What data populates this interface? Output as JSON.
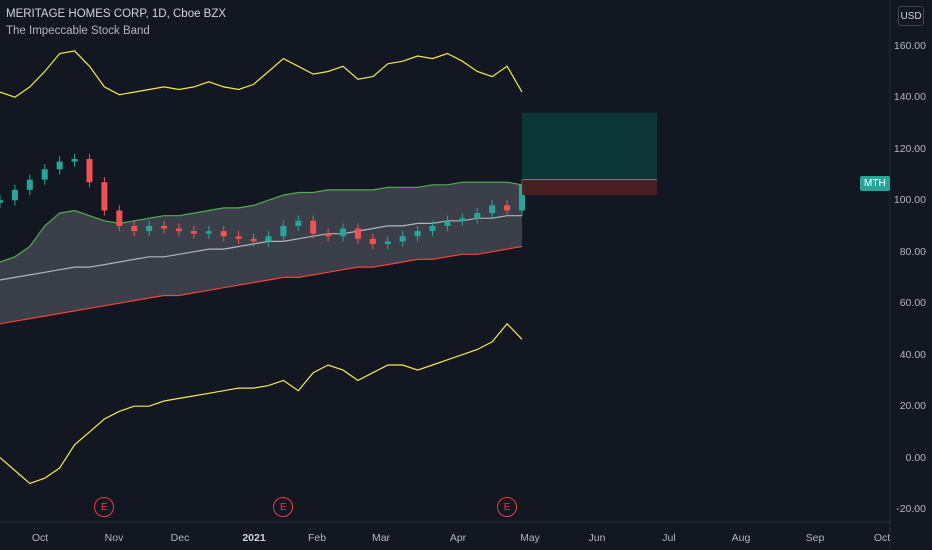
{
  "header": {
    "title": "MERITAGE HOMES CORP, 1D, Cboe BZX",
    "indicator": "The Impeccable Stock Band",
    "currency": "USD"
  },
  "ticker_badge": "MTH",
  "earnings_marker": "E",
  "colors": {
    "background": "#131722",
    "band_fill": "#4a4d57",
    "upper_band": "#4caf50",
    "lower_band": "#f44336",
    "mid_line": "#b2b5be",
    "outer_bands": "#f5e94e",
    "candle_up": "#26a69a",
    "candle_down": "#ef5350",
    "target_zone": "#0d3b3a",
    "stop_zone": "#4a1f22"
  },
  "chart_data": {
    "type": "line",
    "x_axis": [
      "Oct",
      "Nov",
      "Dec",
      "2021",
      "Feb",
      "Mar",
      "Apr",
      "May",
      "Jun",
      "Jul",
      "Aug",
      "Sep",
      "Oct"
    ],
    "y_ticks": [
      "160.00",
      "140.00",
      "120.00",
      "100.00",
      "80.00",
      "60.00",
      "40.00",
      "20.00",
      "0.00",
      "-20.00"
    ],
    "ylim": [
      -25,
      170
    ],
    "series": [
      {
        "role": "outer-upper",
        "values": [
          142,
          140,
          144,
          150,
          157,
          158,
          152,
          144,
          141,
          142,
          143,
          144,
          143,
          144,
          146,
          144,
          143,
          145,
          150,
          155,
          152,
          149,
          150,
          152,
          147,
          148,
          153,
          154,
          156,
          155,
          157,
          154,
          150,
          148,
          152,
          142
        ]
      },
      {
        "role": "band-upper",
        "values": [
          76,
          78,
          82,
          90,
          95,
          96,
          94,
          92,
          91,
          92,
          93,
          94,
          94,
          95,
          96,
          97,
          97,
          98,
          100,
          102,
          103,
          103,
          104,
          104,
          104,
          104,
          105,
          105,
          105,
          106,
          106,
          107,
          107,
          107,
          107,
          106
        ]
      },
      {
        "role": "mid",
        "values": [
          69,
          70,
          71,
          72,
          73,
          74,
          74,
          75,
          76,
          77,
          78,
          78,
          79,
          80,
          81,
          81,
          82,
          83,
          84,
          84,
          85,
          86,
          87,
          87,
          88,
          89,
          90,
          90,
          91,
          91,
          92,
          92,
          93,
          93,
          94,
          94
        ]
      },
      {
        "role": "band-lower",
        "values": [
          52,
          53,
          54,
          55,
          56,
          57,
          58,
          59,
          60,
          61,
          62,
          63,
          63,
          64,
          65,
          66,
          67,
          68,
          69,
          70,
          70,
          71,
          72,
          73,
          74,
          74,
          75,
          76,
          77,
          77,
          78,
          79,
          79,
          80,
          81,
          82
        ]
      },
      {
        "role": "outer-lower",
        "values": [
          0,
          -5,
          -10,
          -8,
          -4,
          5,
          10,
          15,
          18,
          20,
          20,
          22,
          23,
          24,
          25,
          26,
          27,
          27,
          28,
          30,
          26,
          33,
          36,
          34,
          30,
          33,
          36,
          36,
          34,
          36,
          38,
          40,
          42,
          45,
          52,
          46
        ]
      },
      {
        "role": "price",
        "values": [
          100,
          104,
          108,
          112,
          115,
          116,
          107,
          96,
          90,
          88,
          90,
          89,
          88,
          87,
          88,
          86,
          85,
          84,
          86,
          90,
          92,
          87,
          86,
          89,
          85,
          83,
          84,
          86,
          88,
          90,
          92,
          93,
          95,
          98,
          96,
          106
        ]
      }
    ],
    "trade_zone": {
      "target_top": 134,
      "entry": 108,
      "stop": 102
    },
    "earnings_dates_index": [
      7,
      19,
      34
    ]
  }
}
